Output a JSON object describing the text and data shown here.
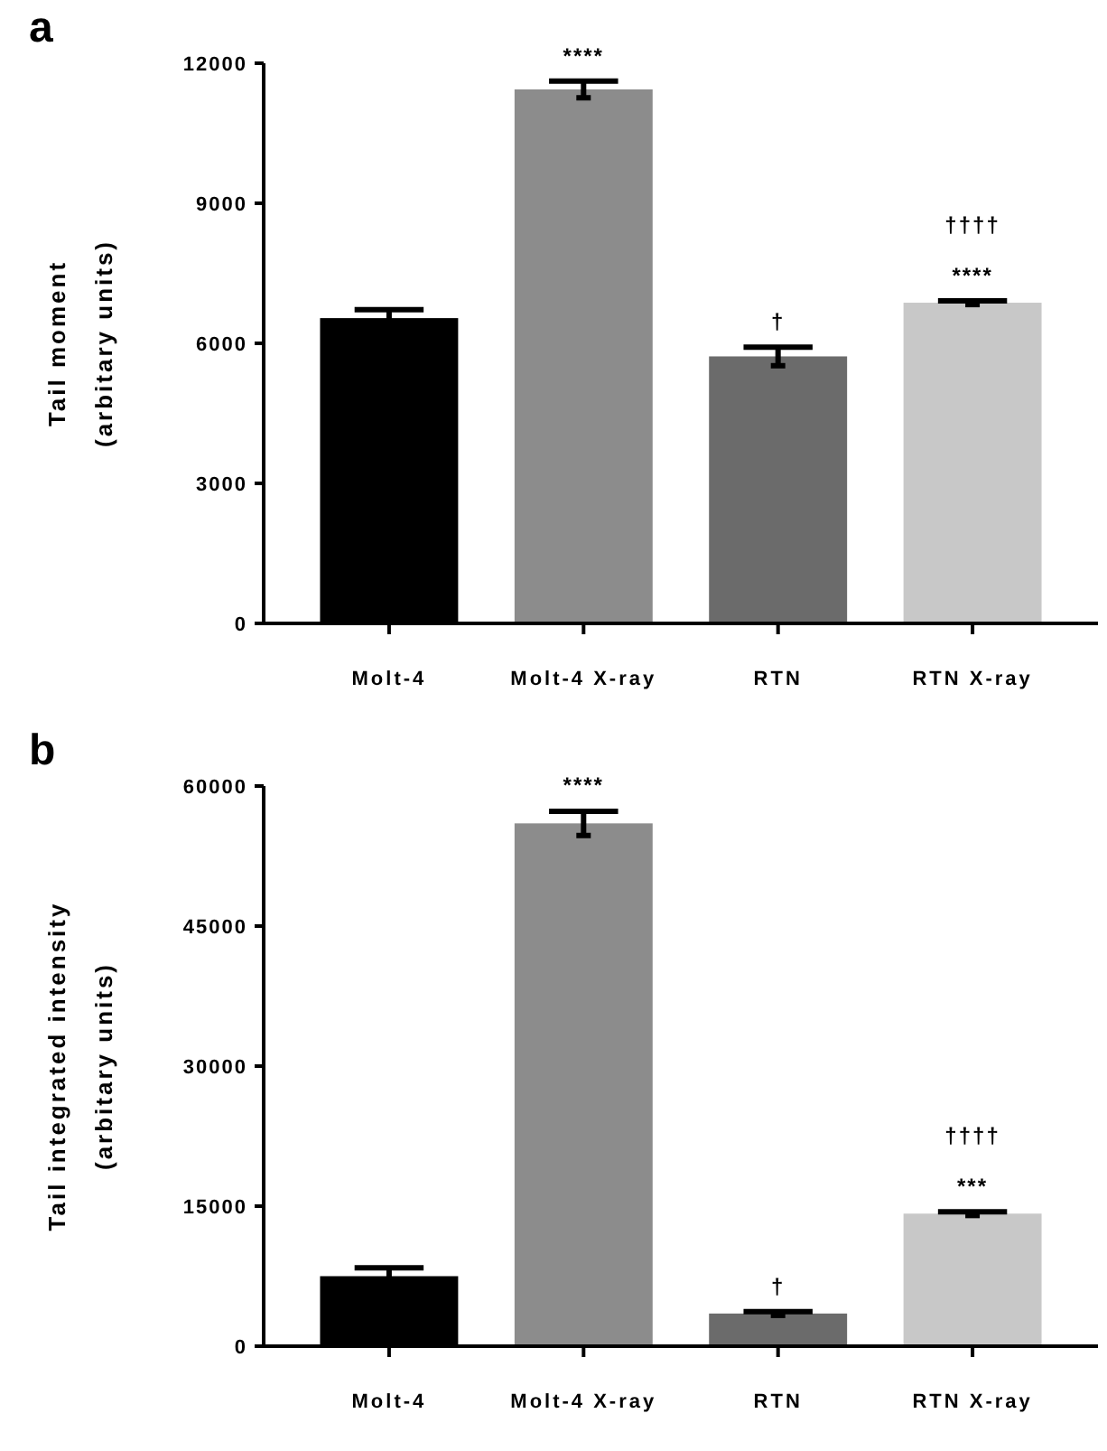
{
  "chart_data": [
    {
      "type": "bar",
      "title": "a",
      "ylabel": "Tail moment\n(arbitary units)",
      "categories": [
        "Molt-4",
        "Molt-4 X-ray",
        "RTN",
        "RTN X-ray"
      ],
      "values": [
        6540,
        11440,
        5720,
        6870
      ],
      "errors": [
        180,
        180,
        200,
        40
      ],
      "colors": [
        "#000000",
        "#8c8c8c",
        "#6b6b6b",
        "#c8c8c8"
      ],
      "ylim": [
        0,
        12000
      ],
      "yticks": [
        0,
        3000,
        6000,
        9000,
        12000
      ],
      "annotations": [
        {
          "text": "****",
          "x": "Molt-4 X-ray",
          "y": 11620
        },
        {
          "text": "†",
          "x": "RTN",
          "y": 5920
        },
        {
          "text": "****",
          "x": "RTN X-ray",
          "y": 6910
        },
        {
          "text": "††††",
          "x": "RTN X-ray",
          "y": 6910
        }
      ]
    },
    {
      "type": "bar",
      "title": "b",
      "ylabel": "Tail integrated intensity\n(arbitary units)",
      "categories": [
        "Molt-4",
        "Molt-4 X-ray",
        "RTN",
        "RTN X-ray"
      ],
      "values": [
        7500,
        56000,
        3500,
        14200
      ],
      "errors": [
        900,
        1300,
        200,
        200
      ],
      "colors": [
        "#000000",
        "#8c8c8c",
        "#6b6b6b",
        "#c8c8c8"
      ],
      "ylim": [
        0,
        60000
      ],
      "yticks": [
        0,
        15000,
        30000,
        45000,
        60000
      ],
      "annotations": [
        {
          "text": "****",
          "x": "Molt-4 X-ray",
          "y": 57400
        },
        {
          "text": "†",
          "x": "RTN",
          "y": 3700
        },
        {
          "text": "***",
          "x": "RTN X-ray",
          "y": 14400
        },
        {
          "text": "††††",
          "x": "RTN X-ray",
          "y": 14400
        }
      ]
    }
  ]
}
